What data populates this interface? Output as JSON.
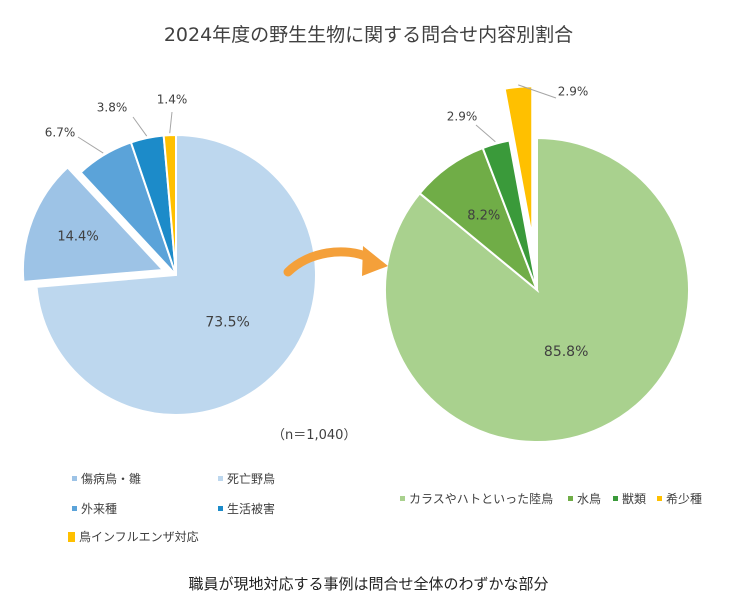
{
  "title": "2024年度の野生生物に関する問合せ内容別割合",
  "note": "（n＝1,040）",
  "caption": "職員が現地対応する事例は問合せ全体のわずかな部分",
  "chart_data": [
    {
      "type": "pie",
      "categories": [
        "死亡野鳥",
        "傷病鳥・雛",
        "外来種",
        "生活被害",
        "鳥インフルエンザ対応"
      ],
      "values": [
        73.5,
        14.4,
        6.7,
        3.8,
        1.4
      ],
      "labels": [
        "73.5%",
        "14.4%",
        "6.7%",
        "3.8%",
        "1.4%"
      ],
      "colors": [
        "#bdd7ee",
        "#9dc3e6",
        "#5ba3d9",
        "#1c8bc9",
        "#ffc000"
      ],
      "legend": {
        "placement": "bottom",
        "order": [
          "傷病鳥・雛",
          "死亡野鳥",
          "外来種",
          "生活被害",
          "鳥インフルエンザ対応"
        ],
        "colors": [
          "#9dc3e6",
          "#bdd7ee",
          "#5ba3d9",
          "#1c8bc9",
          "#ffc000"
        ]
      }
    },
    {
      "type": "pie",
      "categories": [
        "カラスやハトといった陸鳥",
        "水鳥",
        "獣類",
        "希少種"
      ],
      "values": [
        85.8,
        8.2,
        2.9,
        2.9
      ],
      "labels": [
        "85.8%",
        "8.2%",
        "2.9%",
        "2.9%"
      ],
      "colors": [
        "#a9d18e",
        "#70ad47",
        "#3a9a3a",
        "#ffc000"
      ],
      "legend": {
        "placement": "bottom"
      }
    }
  ]
}
